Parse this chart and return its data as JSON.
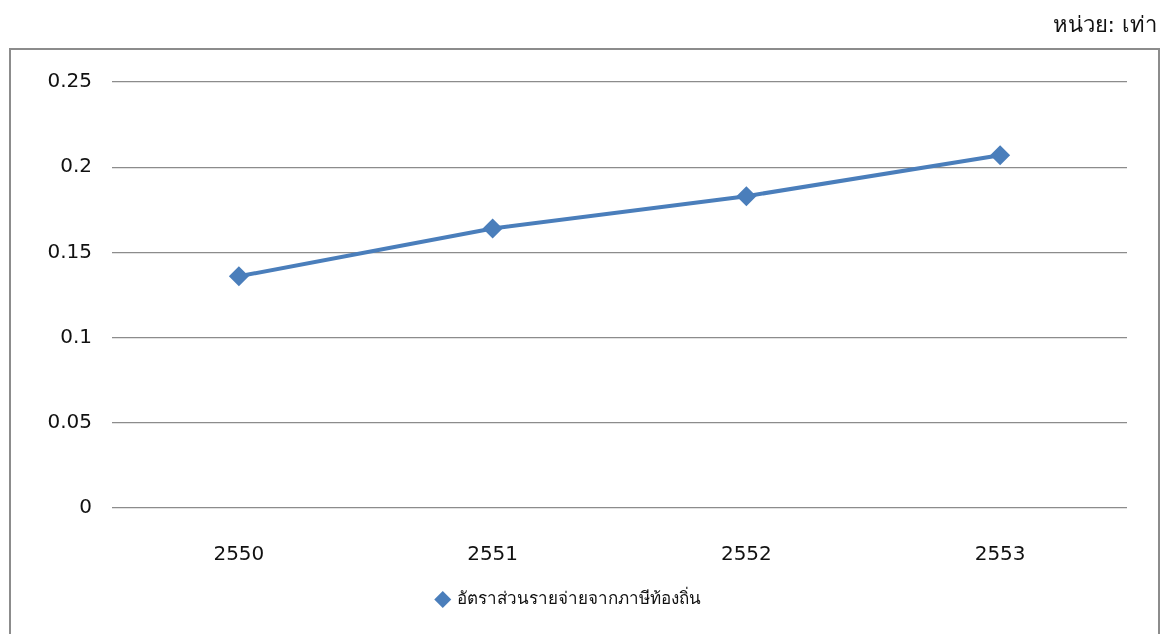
{
  "chart_data": {
    "type": "line",
    "annotations": [
      "หน่วย: เท่า"
    ],
    "categories": [
      "2550",
      "2551",
      "2552",
      "2553"
    ],
    "series": [
      {
        "name": "อัตราส่วนรายจ่ายจากภาษีท้องถิ่น",
        "color": "#4a7ebb",
        "values": [
          0.136,
          0.164,
          0.183,
          0.207
        ]
      }
    ],
    "ylim": [
      0,
      0.25
    ],
    "yticks": [
      0,
      0.05,
      0.1,
      0.15,
      0.2,
      0.25
    ],
    "grid": "y",
    "legend": "bottom",
    "marker": "diamond",
    "line_style": "solid"
  }
}
